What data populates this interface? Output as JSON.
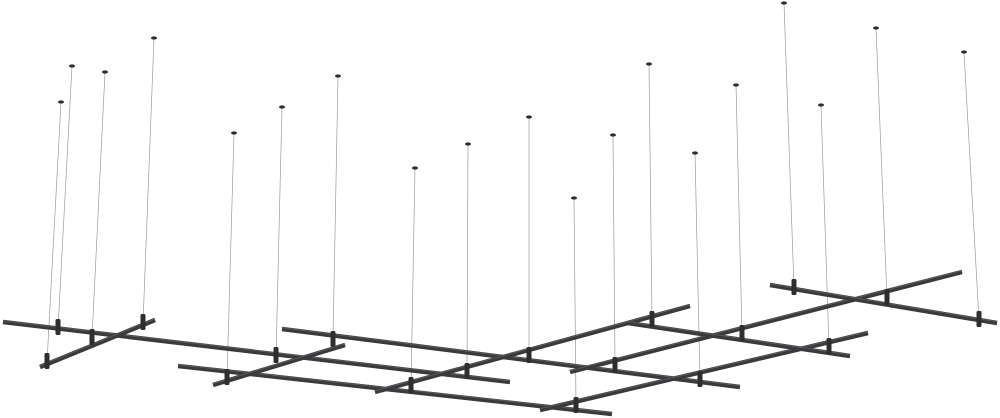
{
  "scene": {
    "subject": "suspended-linear-lighting-system",
    "colors": {
      "background": "#ffffff",
      "fixture": "#3a3a3c",
      "fixture_highlight": "#5a5a5e",
      "cable": "#9a9a9a",
      "canopy": "#2e2e30"
    }
  }
}
